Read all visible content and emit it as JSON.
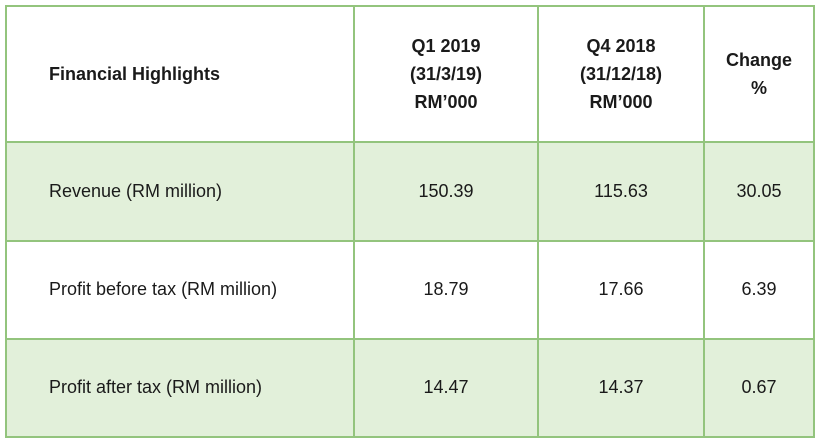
{
  "table": {
    "headers": [
      {
        "lines": [
          "Financial Highlights"
        ]
      },
      {
        "lines": [
          "Q1 2019",
          "(31/3/19)",
          "RM’000"
        ]
      },
      {
        "lines": [
          "Q4 2018",
          "(31/12/18)",
          "RM’000"
        ]
      },
      {
        "lines": [
          "Change",
          "%"
        ]
      }
    ],
    "rows": [
      {
        "label": "Revenue (RM million)",
        "q1_2019": "150.39",
        "q4_2018": "115.63",
        "change": "30.05"
      },
      {
        "label": "Profit before tax (RM million)",
        "q1_2019": "18.79",
        "q4_2018": "17.66",
        "change": "6.39"
      },
      {
        "label": "Profit after tax (RM million)",
        "q1_2019": "14.47",
        "q4_2018": "14.37",
        "change": "0.67"
      }
    ]
  },
  "colors": {
    "border": "#93c47d",
    "shaded_row": "#e2f0da"
  }
}
